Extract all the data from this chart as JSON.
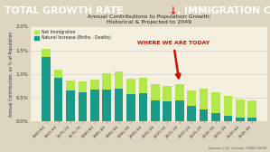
{
  "title_text": "TOTAL GROWTH RATE",
  "title_arrow": "↓",
  "title_rest": ", IMMIGRATION CRITICAL",
  "title_bg": "#1c1c1c",
  "title_fg": "#ffffff",
  "title_arrow_color": "#e03020",
  "chart_title1": "Annual Contributions to Population Growth:",
  "chart_title2": "Historical & Projected to 2049",
  "chart_bg": "#f5efe0",
  "fig_bg": "#ddd5c0",
  "ylabel": "Annual Contribution, as % of Population",
  "source": "Source: U.S. Census (1960-2016)",
  "annotation_text": "WHERE WE ARE TODAY",
  "annotation_color": "#cc1100",
  "annotation_bar_idx": 11,
  "categories": [
    "1960-64",
    "1965-69",
    "1970-74",
    "1975-79",
    "1980-84",
    "1985-89",
    "1990-94",
    "1995-99",
    "2000-04",
    "2005-09",
    "2010-14",
    "2015-19",
    "2020-24",
    "2025-29",
    "2030-34",
    "2035-39",
    "2040-44",
    "2045-49"
  ],
  "natural_increase": [
    1.36,
    0.92,
    0.65,
    0.62,
    0.68,
    0.68,
    0.7,
    0.58,
    0.6,
    0.45,
    0.43,
    0.45,
    0.33,
    0.25,
    0.18,
    0.13,
    0.09,
    0.08
  ],
  "net_immigration": [
    0.18,
    0.18,
    0.22,
    0.22,
    0.2,
    0.33,
    0.35,
    0.33,
    0.33,
    0.33,
    0.33,
    0.33,
    0.33,
    0.44,
    0.44,
    0.42,
    0.38,
    0.36
  ],
  "natural_color": "#1a9b8a",
  "immigration_color": "#b2e84a",
  "ylim": [
    0.0,
    2.0
  ],
  "yticks": [
    0.0,
    0.5,
    1.0,
    1.5,
    2.0
  ],
  "ytick_labels": [
    "0.0%",
    "0.5%",
    "1.0%",
    "1.5%",
    "2.0%"
  ],
  "legend_label_immigration": "Net Immigration",
  "legend_label_natural": "Natural Increase (Births - Deaths)"
}
